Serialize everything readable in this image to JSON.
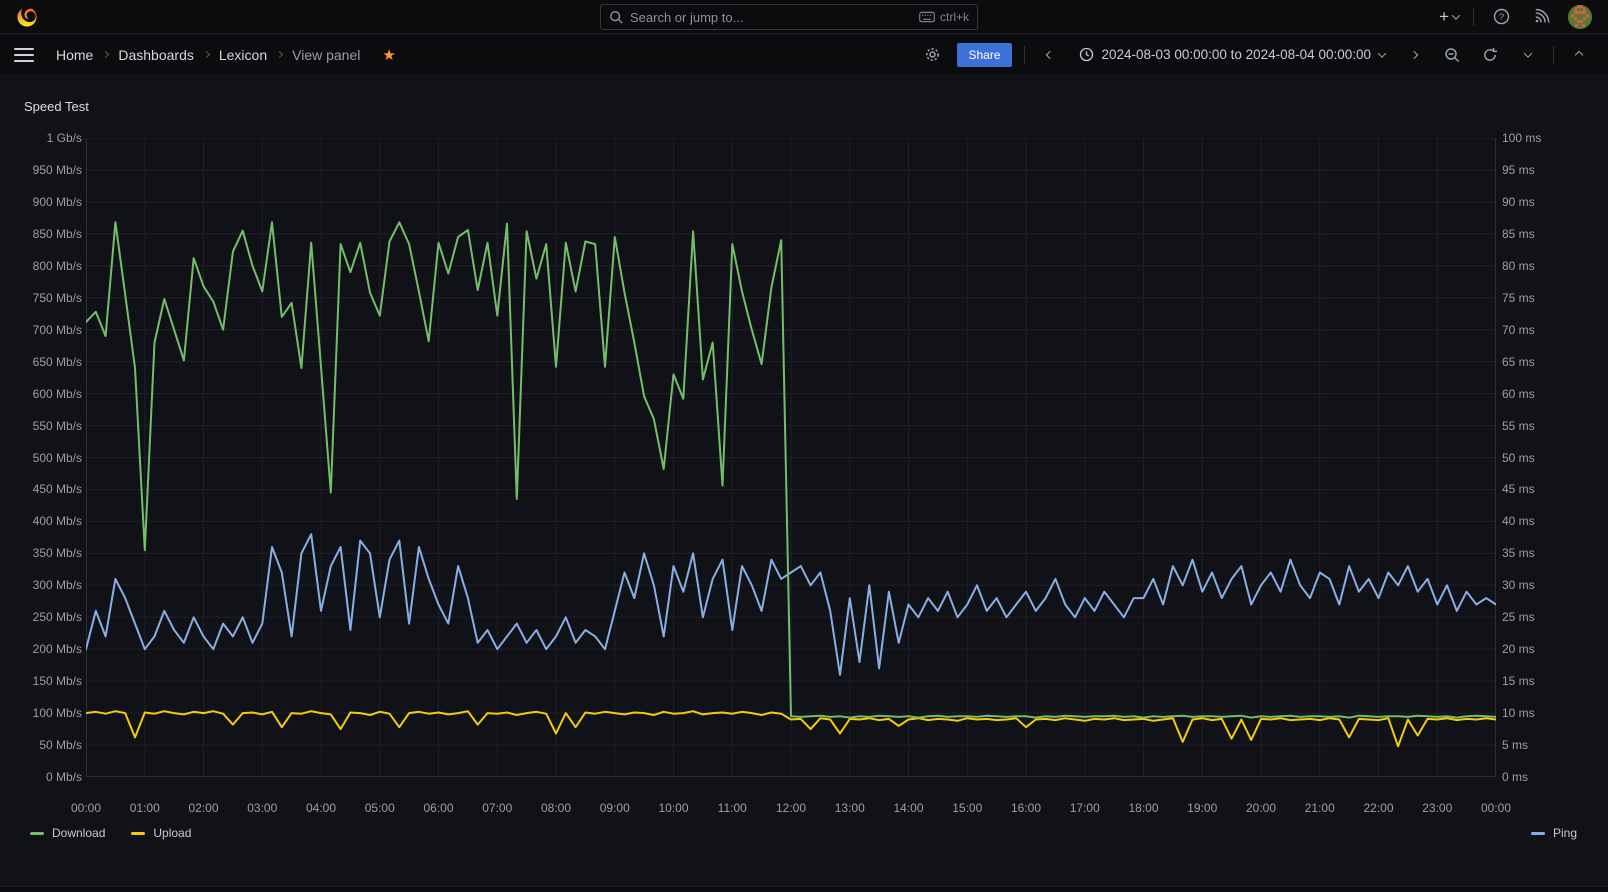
{
  "topbar": {
    "search_placeholder": "Search or jump to...",
    "search_shortcut": "ctrl+k"
  },
  "breadcrumbs": {
    "items": [
      {
        "label": "Home"
      },
      {
        "label": "Dashboards"
      },
      {
        "label": "Lexicon"
      },
      {
        "label": "View panel"
      }
    ]
  },
  "toolbar": {
    "share_label": "Share",
    "time_range": "2024-08-03 00:00:00 to 2024-08-04 00:00:00"
  },
  "panel": {
    "title": "Speed Test"
  },
  "chart_data": {
    "type": "line",
    "title": "Speed Test",
    "grid": true,
    "legend_position": "bottom",
    "step_minutes": 10,
    "x_axis": {
      "span_hours": 24,
      "tick_labels": [
        "00:00",
        "01:00",
        "02:00",
        "03:00",
        "04:00",
        "05:00",
        "06:00",
        "07:00",
        "08:00",
        "09:00",
        "10:00",
        "11:00",
        "12:00",
        "13:00",
        "14:00",
        "15:00",
        "16:00",
        "17:00",
        "18:00",
        "19:00",
        "20:00",
        "21:00",
        "22:00",
        "23:00",
        "00:00"
      ]
    },
    "left_axis": {
      "unit": "Mb/s",
      "min": 0,
      "max": 1000,
      "tick_labels": [
        "1 Gb/s",
        "950 Mb/s",
        "900 Mb/s",
        "850 Mb/s",
        "800 Mb/s",
        "750 Mb/s",
        "700 Mb/s",
        "650 Mb/s",
        "600 Mb/s",
        "550 Mb/s",
        "500 Mb/s",
        "450 Mb/s",
        "400 Mb/s",
        "350 Mb/s",
        "300 Mb/s",
        "250 Mb/s",
        "200 Mb/s",
        "150 Mb/s",
        "100 Mb/s",
        "50 Mb/s",
        "0 Mb/s"
      ]
    },
    "right_axis": {
      "unit": "ms",
      "min": 0,
      "max": 100,
      "tick_labels": [
        "100 ms",
        "95 ms",
        "90 ms",
        "85 ms",
        "80 ms",
        "75 ms",
        "70 ms",
        "65 ms",
        "60 ms",
        "55 ms",
        "50 ms",
        "45 ms",
        "40 ms",
        "35 ms",
        "30 ms",
        "25 ms",
        "20 ms",
        "15 ms",
        "10 ms",
        "5 ms",
        "0 ms"
      ]
    },
    "series": [
      {
        "name": "Download",
        "color": "#73BF69",
        "axis": "left",
        "values": [
          712,
          728,
          690,
          868,
          755,
          640,
          355,
          680,
          748,
          700,
          652,
          812,
          768,
          744,
          700,
          822,
          855,
          800,
          760,
          868,
          720,
          742,
          640,
          836,
          642,
          445,
          834,
          790,
          836,
          758,
          722,
          838,
          868,
          834,
          760,
          682,
          836,
          788,
          845,
          856,
          762,
          836,
          722,
          866,
          435,
          854,
          780,
          834,
          642,
          836,
          760,
          838,
          834,
          642,
          845,
          758,
          680,
          596,
          560,
          482,
          630,
          592,
          854,
          622,
          680,
          456,
          834,
          760,
          700,
          646,
          766,
          840,
          95,
          94,
          95,
          96,
          94,
          95,
          93,
          95,
          94,
          96,
          95,
          94,
          95,
          93,
          95,
          96,
          94,
          95,
          95,
          94,
          96,
          95,
          94,
          95,
          95,
          93,
          95,
          94,
          96,
          95,
          94,
          95,
          95,
          96,
          94,
          95,
          93,
          95,
          94,
          95,
          96,
          94,
          95,
          95,
          94,
          95,
          96,
          93,
          95,
          94,
          95,
          96,
          94,
          95,
          95,
          94,
          95,
          93,
          96,
          95,
          94,
          95,
          95,
          94,
          96,
          95,
          94,
          95,
          93,
          95,
          96,
          95,
          94
        ]
      },
      {
        "name": "Upload",
        "color": "#F2CC0C",
        "axis": "left",
        "values": [
          100,
          102,
          99,
          103,
          100,
          62,
          101,
          99,
          103,
          100,
          98,
          102,
          100,
          103,
          99,
          82,
          100,
          101,
          98,
          102,
          78,
          100,
          99,
          103,
          100,
          98,
          75,
          101,
          100,
          97,
          102,
          99,
          78,
          100,
          102,
          99,
          101,
          98,
          100,
          103,
          82,
          100,
          99,
          101,
          97,
          100,
          102,
          99,
          68,
          100,
          78,
          101,
          99,
          102,
          100,
          98,
          101,
          100,
          97,
          102,
          99,
          100,
          103,
          98,
          100,
          101,
          99,
          102,
          100,
          97,
          101,
          99,
          90,
          91,
          75,
          92,
          90,
          68,
          91,
          90,
          92,
          89,
          91,
          80,
          90,
          92,
          89,
          91,
          90,
          88,
          92,
          90,
          91,
          89,
          90,
          92,
          78,
          90,
          91,
          89,
          92,
          90,
          88,
          91,
          90,
          92,
          89,
          90,
          91,
          88,
          90,
          92,
          55,
          90,
          92,
          89,
          91,
          60,
          90,
          58,
          91,
          90,
          92,
          89,
          90,
          91,
          89,
          92,
          90,
          62,
          91,
          90,
          89,
          92,
          48,
          90,
          65,
          91,
          90,
          92,
          89,
          91,
          90,
          92,
          90
        ]
      },
      {
        "name": "Ping",
        "color": "#87AFE6",
        "axis": "right",
        "values": [
          20,
          26,
          22,
          31,
          28,
          24,
          20,
          22,
          26,
          23,
          21,
          25,
          22,
          20,
          24,
          22,
          25,
          21,
          24,
          36,
          32,
          22,
          35,
          38,
          26,
          33,
          36,
          23,
          37,
          35,
          25,
          34,
          37,
          24,
          36,
          31,
          27,
          24,
          33,
          28,
          21,
          23,
          20,
          22,
          24,
          21,
          23,
          20,
          22,
          25,
          21,
          23,
          22,
          20,
          26,
          32,
          28,
          35,
          30,
          22,
          33,
          29,
          35,
          25,
          31,
          34,
          23,
          33,
          30,
          26,
          34,
          31,
          32,
          33,
          30,
          32,
          26,
          16,
          28,
          18,
          30,
          17,
          29,
          21,
          27,
          25,
          28,
          26,
          29,
          25,
          27,
          30,
          26,
          28,
          25,
          27,
          29,
          26,
          28,
          31,
          27,
          25,
          28,
          26,
          29,
          27,
          25,
          28,
          28,
          31,
          27,
          33,
          30,
          34,
          29,
          32,
          28,
          31,
          33,
          27,
          30,
          32,
          29,
          34,
          30,
          28,
          32,
          31,
          27,
          33,
          29,
          31,
          28,
          32,
          30,
          33,
          29,
          31,
          27,
          30,
          26,
          29,
          27,
          28,
          27
        ]
      }
    ],
    "legend": {
      "left_entries": [
        "Download",
        "Upload"
      ],
      "right_entries": [
        "Ping"
      ]
    }
  }
}
